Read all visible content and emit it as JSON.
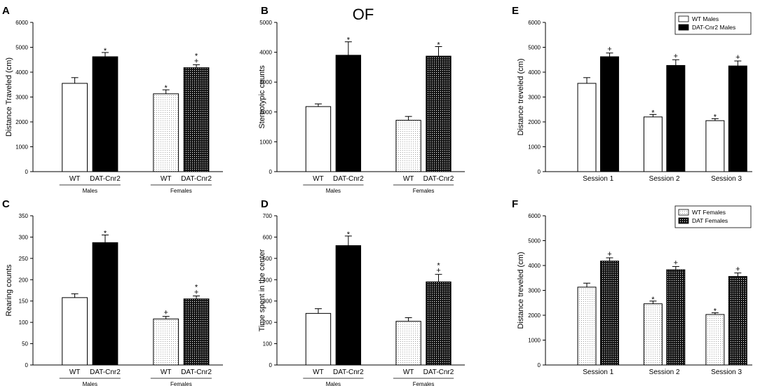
{
  "figure_title": "OF",
  "patterns": {
    "dots": "#e9e9e9",
    "dark_dots": "#111111",
    "solid": "#000000",
    "open": "#ffffff"
  },
  "chart_data": [
    {
      "panel": "A",
      "type": "bar",
      "layout": "grouped-sex",
      "ylabel": "Distance Traveled (cm)",
      "ylim": [
        0,
        6000
      ],
      "yticks": [
        0,
        1000,
        2000,
        3000,
        4000,
        5000,
        6000
      ],
      "groups": [
        {
          "label": "Males",
          "bars": [
            {
              "label": "WT",
              "value": 3550,
              "err": 230,
              "fill": "open",
              "marks": []
            },
            {
              "label": "DAT-Cnr2",
              "value": 4620,
              "err": 170,
              "fill": "solid",
              "marks": [
                "*"
              ]
            }
          ]
        },
        {
          "label": "Females",
          "bars": [
            {
              "label": "WT",
              "value": 3130,
              "err": 160,
              "fill": "dots",
              "marks": [
                "*"
              ]
            },
            {
              "label": "DAT-Cnr2",
              "value": 4180,
              "err": 120,
              "fill": "dark_dots",
              "marks": [
                "+",
                "*"
              ]
            }
          ]
        }
      ]
    },
    {
      "panel": "B",
      "type": "bar",
      "layout": "grouped-sex",
      "ylabel": "Stereotypic counts",
      "ylim": [
        0,
        5000
      ],
      "yticks": [
        0,
        1000,
        2000,
        3000,
        4000,
        5000
      ],
      "groups": [
        {
          "label": "Males",
          "bars": [
            {
              "label": "WT",
              "value": 2180,
              "err": 90,
              "fill": "open",
              "marks": []
            },
            {
              "label": "DAT-Cnr2",
              "value": 3900,
              "err": 450,
              "fill": "solid",
              "marks": [
                "*"
              ]
            }
          ]
        },
        {
          "label": "Females",
          "bars": [
            {
              "label": "WT",
              "value": 1720,
              "err": 130,
              "fill": "dots",
              "marks": []
            },
            {
              "label": "DAT-Cnr2",
              "value": 3870,
              "err": 320,
              "fill": "dark_dots",
              "marks": [
                "*"
              ]
            }
          ]
        }
      ]
    },
    {
      "panel": "C",
      "type": "bar",
      "layout": "grouped-sex",
      "ylabel": "Rearing counts",
      "ylim": [
        0,
        350
      ],
      "yticks": [
        0,
        50,
        100,
        150,
        200,
        250,
        300,
        350
      ],
      "groups": [
        {
          "label": "Males",
          "bars": [
            {
              "label": "WT",
              "value": 158,
              "err": 9,
              "fill": "open",
              "marks": []
            },
            {
              "label": "DAT-Cnr2",
              "value": 287,
              "err": 18,
              "fill": "solid",
              "marks": [
                "*"
              ]
            }
          ]
        },
        {
          "label": "Females",
          "bars": [
            {
              "label": "WT",
              "value": 108,
              "err": 6,
              "fill": "dots",
              "marks": [
                "+"
              ]
            },
            {
              "label": "DAT-Cnr2",
              "value": 155,
              "err": 7,
              "fill": "dark_dots",
              "marks": [
                "+",
                "*"
              ]
            }
          ]
        }
      ]
    },
    {
      "panel": "D",
      "type": "bar",
      "layout": "grouped-sex",
      "ylabel": "Time spent in the center",
      "ylim": [
        0,
        700
      ],
      "yticks": [
        0,
        100,
        200,
        300,
        400,
        500,
        600,
        700
      ],
      "groups": [
        {
          "label": "Males",
          "bars": [
            {
              "label": "WT",
              "value": 242,
              "err": 22,
              "fill": "open",
              "marks": []
            },
            {
              "label": "DAT-Cnr2",
              "value": 560,
              "err": 45,
              "fill": "solid",
              "marks": [
                "*"
              ]
            }
          ]
        },
        {
          "label": "Females",
          "bars": [
            {
              "label": "WT",
              "value": 205,
              "err": 17,
              "fill": "dots",
              "marks": []
            },
            {
              "label": "DAT-Cnr2",
              "value": 390,
              "err": 35,
              "fill": "dark_dots",
              "marks": [
                "+",
                "*"
              ]
            }
          ]
        }
      ]
    },
    {
      "panel": "E",
      "type": "bar",
      "layout": "sessions",
      "ylabel": "Distance treveled (cm)",
      "ylim": [
        0,
        6000
      ],
      "yticks": [
        0,
        1000,
        2000,
        3000,
        4000,
        5000,
        6000
      ],
      "legend": [
        {
          "label": "WT Males",
          "fill": "open"
        },
        {
          "label": "DAT-Cnr2 Males",
          "fill": "solid"
        }
      ],
      "legend_placement": "top-right",
      "groups": [
        {
          "label": "Session 1",
          "bars": [
            {
              "value": 3550,
              "err": 230,
              "fill": "open",
              "marks": []
            },
            {
              "value": 4620,
              "err": 150,
              "fill": "solid",
              "marks": [
                "+"
              ]
            }
          ]
        },
        {
          "label": "Session 2",
          "bars": [
            {
              "value": 2200,
              "err": 100,
              "fill": "open",
              "marks": [
                "*"
              ]
            },
            {
              "value": 4270,
              "err": 230,
              "fill": "solid",
              "marks": [
                "+"
              ]
            }
          ]
        },
        {
          "label": "Session 3",
          "bars": [
            {
              "value": 2050,
              "err": 80,
              "fill": "open",
              "marks": [
                "*"
              ]
            },
            {
              "value": 4250,
              "err": 200,
              "fill": "solid",
              "marks": [
                "+"
              ]
            }
          ]
        }
      ]
    },
    {
      "panel": "F",
      "type": "bar",
      "layout": "sessions",
      "ylabel": "Distance treveled (cm)",
      "ylim": [
        0,
        6000
      ],
      "yticks": [
        0,
        1000,
        2000,
        3000,
        4000,
        5000,
        6000
      ],
      "legend": [
        {
          "label": "WT Females",
          "fill": "dots"
        },
        {
          "label": "DAT Females",
          "fill": "dark_dots"
        }
      ],
      "legend_placement": "top-right",
      "groups": [
        {
          "label": "Session 1",
          "bars": [
            {
              "value": 3130,
              "err": 160,
              "fill": "dots",
              "marks": []
            },
            {
              "value": 4180,
              "err": 130,
              "fill": "dark_dots",
              "marks": [
                "+"
              ]
            }
          ]
        },
        {
          "label": "Session 2",
          "bars": [
            {
              "value": 2460,
              "err": 110,
              "fill": "dots",
              "marks": [
                "*"
              ]
            },
            {
              "value": 3830,
              "err": 130,
              "fill": "dark_dots",
              "marks": [
                "+"
              ]
            }
          ]
        },
        {
          "label": "Session 3",
          "bars": [
            {
              "value": 2030,
              "err": 70,
              "fill": "dots",
              "marks": [
                "*"
              ]
            },
            {
              "value": 3560,
              "err": 140,
              "fill": "dark_dots",
              "marks": [
                "+"
              ]
            }
          ]
        }
      ]
    }
  ]
}
